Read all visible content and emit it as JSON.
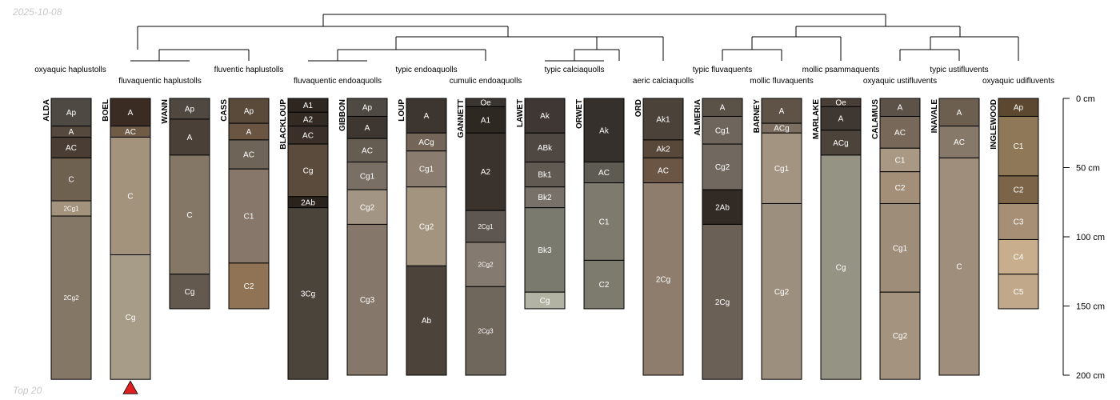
{
  "header": {
    "date": "2025-10-08"
  },
  "footer": {
    "caption": "Top 20"
  },
  "chart_data": {
    "type": "soil-profile-sketch-with-dendrogram",
    "depth_axis": {
      "min": 0,
      "max": 200,
      "unit": "cm",
      "ticks": [
        0,
        50,
        100,
        150,
        200
      ],
      "tick_labels": [
        "0 cm",
        "50 cm",
        "100 cm",
        "150 cm",
        "200 cm"
      ]
    },
    "subgroup_labels": [
      "oxyaquic haplustolls",
      "fluvaquentic haplustolls",
      "fluventic haplustolls",
      "fluvaquentic endoaquolls",
      "typic endoaquolls",
      "cumulic endoaquolls",
      "typic calciaquolls",
      "aeric calciaquolls",
      "typic fluvaquents",
      "mollic fluvaquents",
      "mollic psammaquents",
      "oxyaquic ustifluvents",
      "typic ustifluvents",
      "oxyaquic udifluvents"
    ],
    "highlighted_profile": "BOEL",
    "profiles": [
      {
        "name": "ALDA",
        "horizons": [
          {
            "name": "Ap",
            "top": 0,
            "bottom": 20,
            "color": "#4e4942"
          },
          {
            "name": "A",
            "top": 20,
            "bottom": 28,
            "color": "#55493d"
          },
          {
            "name": "AC",
            "top": 28,
            "bottom": 43,
            "color": "#4a3d33"
          },
          {
            "name": "C",
            "top": 43,
            "bottom": 74,
            "color": "#6f6150"
          },
          {
            "name": "2Cg1",
            "top": 74,
            "bottom": 85,
            "color": "#a3927c"
          },
          {
            "name": "2Cg2",
            "top": 85,
            "bottom": 203,
            "color": "#857766"
          }
        ]
      },
      {
        "name": "BOEL",
        "horizons": [
          {
            "name": "A",
            "top": 0,
            "bottom": 20,
            "color": "#3a2c22"
          },
          {
            "name": "AC",
            "top": 20,
            "bottom": 28,
            "color": "#6f5b46"
          },
          {
            "name": "C",
            "top": 28,
            "bottom": 113,
            "color": "#a3937d"
          },
          {
            "name": "Cg",
            "top": 113,
            "bottom": 203,
            "color": "#a69c88"
          }
        ]
      },
      {
        "name": "WANN",
        "horizons": [
          {
            "name": "Ap",
            "top": 0,
            "bottom": 15,
            "color": "#4f4840"
          },
          {
            "name": "A",
            "top": 15,
            "bottom": 41,
            "color": "#4a4038"
          },
          {
            "name": "C",
            "top": 41,
            "bottom": 127,
            "color": "#857766"
          },
          {
            "name": "Cg",
            "top": 127,
            "bottom": 152,
            "color": "#64594f"
          }
        ]
      },
      {
        "name": "CASS",
        "horizons": [
          {
            "name": "Ap",
            "top": 0,
            "bottom": 18,
            "color": "#5a4a3a"
          },
          {
            "name": "A",
            "top": 18,
            "bottom": 30,
            "color": "#6a5442"
          },
          {
            "name": "AC",
            "top": 30,
            "bottom": 51,
            "color": "#6e6458"
          },
          {
            "name": "C1",
            "top": 51,
            "bottom": 119,
            "color": "#87776a"
          },
          {
            "name": "C2",
            "top": 119,
            "bottom": 152,
            "color": "#8f7354"
          }
        ]
      },
      {
        "name": "BLACKLOUP",
        "horizons": [
          {
            "name": "A1",
            "top": 0,
            "bottom": 10,
            "color": "#2e2620"
          },
          {
            "name": "A2",
            "top": 10,
            "bottom": 20,
            "color": "#322a23"
          },
          {
            "name": "AC",
            "top": 20,
            "bottom": 33,
            "color": "#3a3029"
          },
          {
            "name": "Cg",
            "top": 33,
            "bottom": 71,
            "color": "#5a4b3c"
          },
          {
            "name": "2Ab",
            "top": 71,
            "bottom": 79,
            "color": "#2a221d"
          },
          {
            "name": "3Cg",
            "top": 79,
            "bottom": 203,
            "color": "#4a443b"
          }
        ]
      },
      {
        "name": "GIBBON",
        "horizons": [
          {
            "name": "Ap",
            "top": 0,
            "bottom": 13,
            "color": "#4f4943"
          },
          {
            "name": "A",
            "top": 13,
            "bottom": 29,
            "color": "#3e3630"
          },
          {
            "name": "AC",
            "top": 29,
            "bottom": 46,
            "color": "#655c52"
          },
          {
            "name": "Cg1",
            "top": 46,
            "bottom": 66,
            "color": "#7a6f64"
          },
          {
            "name": "Cg2",
            "top": 66,
            "bottom": 91,
            "color": "#a39584"
          },
          {
            "name": "Cg3",
            "top": 91,
            "bottom": 200,
            "color": "#85786a"
          }
        ]
      },
      {
        "name": "LOUP",
        "horizons": [
          {
            "name": "A",
            "top": 0,
            "bottom": 25,
            "color": "#3c3530"
          },
          {
            "name": "ACg",
            "top": 25,
            "bottom": 38,
            "color": "#736658"
          },
          {
            "name": "Cg1",
            "top": 38,
            "bottom": 64,
            "color": "#8a7c6e"
          },
          {
            "name": "Cg2",
            "top": 64,
            "bottom": 121,
            "color": "#a39480"
          },
          {
            "name": "Ab",
            "top": 121,
            "bottom": 200,
            "color": "#4c433b"
          }
        ]
      },
      {
        "name": "GANNETT",
        "horizons": [
          {
            "name": "Oe",
            "top": 0,
            "bottom": 6,
            "color": "#3a3530"
          },
          {
            "name": "A1",
            "top": 6,
            "bottom": 25,
            "color": "#2e2823"
          },
          {
            "name": "A2",
            "top": 25,
            "bottom": 81,
            "color": "#3a322c"
          },
          {
            "name": "2Cg1",
            "top": 81,
            "bottom": 104,
            "color": "#5e5650"
          },
          {
            "name": "2Cg2",
            "top": 104,
            "bottom": 136,
            "color": "#857a70"
          },
          {
            "name": "2Cg3",
            "top": 136,
            "bottom": 200,
            "color": "#6f665c"
          }
        ]
      },
      {
        "name": "LAWET",
        "horizons": [
          {
            "name": "Ak",
            "top": 0,
            "bottom": 25,
            "color": "#3e3733"
          },
          {
            "name": "ABk",
            "top": 25,
            "bottom": 46,
            "color": "#4f4741"
          },
          {
            "name": "Bk1",
            "top": 46,
            "bottom": 64,
            "color": "#615a52"
          },
          {
            "name": "Bk2",
            "top": 64,
            "bottom": 79,
            "color": "#78716a"
          },
          {
            "name": "Bk3",
            "top": 79,
            "bottom": 140,
            "color": "#7b7a6e"
          },
          {
            "name": "Cg",
            "top": 140,
            "bottom": 152,
            "color": "#b3b3a3"
          }
        ]
      },
      {
        "name": "ORWET",
        "horizons": [
          {
            "name": "Ak",
            "top": 0,
            "bottom": 46,
            "color": "#35302c"
          },
          {
            "name": "AC",
            "top": 46,
            "bottom": 61,
            "color": "#5e5c52"
          },
          {
            "name": "C1",
            "top": 61,
            "bottom": 117,
            "color": "#7e7b6e"
          },
          {
            "name": "C2",
            "top": 117,
            "bottom": 152,
            "color": "#7d7b6d"
          }
        ]
      },
      {
        "name": "ORD",
        "horizons": [
          {
            "name": "Ak1",
            "top": 0,
            "bottom": 30,
            "color": "#4b423a"
          },
          {
            "name": "Ak2",
            "top": 30,
            "bottom": 43,
            "color": "#58483a"
          },
          {
            "name": "AC",
            "top": 43,
            "bottom": 61,
            "color": "#6b5645"
          },
          {
            "name": "2Cg",
            "top": 61,
            "bottom": 200,
            "color": "#8e7d6c"
          }
        ]
      },
      {
        "name": "ALMERIA",
        "horizons": [
          {
            "name": "A",
            "top": 0,
            "bottom": 13,
            "color": "#5a5147"
          },
          {
            "name": "Cg1",
            "top": 13,
            "bottom": 33,
            "color": "#6e665d"
          },
          {
            "name": "Cg2",
            "top": 33,
            "bottom": 66,
            "color": "#716860"
          },
          {
            "name": "2Ab",
            "top": 66,
            "bottom": 91,
            "color": "#322a25"
          },
          {
            "name": "2Cg",
            "top": 91,
            "bottom": 203,
            "color": "#6a6056"
          }
        ]
      },
      {
        "name": "BARNEY",
        "horizons": [
          {
            "name": "A",
            "top": 0,
            "bottom": 18,
            "color": "#5f5348"
          },
          {
            "name": "ACg",
            "top": 18,
            "bottom": 25,
            "color": "#7c6e60"
          },
          {
            "name": "Cg1",
            "top": 25,
            "bottom": 76,
            "color": "#a39482"
          },
          {
            "name": "Cg2",
            "top": 76,
            "bottom": 203,
            "color": "#9d8f7d"
          }
        ]
      },
      {
        "name": "MARLAKE",
        "horizons": [
          {
            "name": "Oe",
            "top": 0,
            "bottom": 6,
            "color": "#4a3f36"
          },
          {
            "name": "A",
            "top": 6,
            "bottom": 23,
            "color": "#3f3731"
          },
          {
            "name": "ACg",
            "top": 23,
            "bottom": 41,
            "color": "#4c433b"
          },
          {
            "name": "Cg",
            "top": 41,
            "bottom": 203,
            "color": "#959484"
          }
        ]
      },
      {
        "name": "CALAMUS",
        "horizons": [
          {
            "name": "A",
            "top": 0,
            "bottom": 13,
            "color": "#5d5247"
          },
          {
            "name": "AC",
            "top": 13,
            "bottom": 36,
            "color": "#77685a"
          },
          {
            "name": "C1",
            "top": 36,
            "bottom": 53,
            "color": "#a89884"
          },
          {
            "name": "C2",
            "top": 53,
            "bottom": 76,
            "color": "#a38f77"
          },
          {
            "name": "Cg1",
            "top": 76,
            "bottom": 140,
            "color": "#9e8d79"
          },
          {
            "name": "Cg2",
            "top": 140,
            "bottom": 203,
            "color": "#a4937f"
          }
        ]
      },
      {
        "name": "INAVALE",
        "horizons": [
          {
            "name": "A",
            "top": 0,
            "bottom": 20,
            "color": "#6d5f50"
          },
          {
            "name": "AC",
            "top": 20,
            "bottom": 43,
            "color": "#87796a"
          },
          {
            "name": "C",
            "top": 43,
            "bottom": 200,
            "color": "#9e8e7b"
          }
        ]
      },
      {
        "name": "INGLEWOOD",
        "horizons": [
          {
            "name": "Ap",
            "top": 0,
            "bottom": 13,
            "color": "#5c4830"
          },
          {
            "name": "C1",
            "top": 13,
            "bottom": 56,
            "color": "#8f7858"
          },
          {
            "name": "C2",
            "top": 56,
            "bottom": 76,
            "color": "#7c6448"
          },
          {
            "name": "C3",
            "top": 76,
            "bottom": 102,
            "color": "#a68f74"
          },
          {
            "name": "C4",
            "top": 102,
            "bottom": 127,
            "color": "#c8ae8c"
          },
          {
            "name": "C5",
            "top": 127,
            "bottom": 152,
            "color": "#c2a88a"
          }
        ]
      }
    ]
  }
}
